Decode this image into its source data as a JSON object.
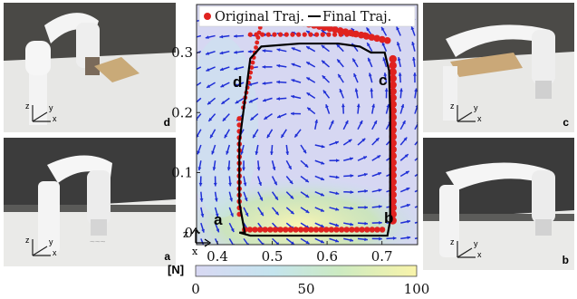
{
  "photos": [
    {
      "id": "d",
      "label": "d"
    },
    {
      "id": "a",
      "label": "a"
    },
    {
      "id": "c",
      "label": "c"
    },
    {
      "id": "b",
      "label": "b"
    }
  ],
  "axes_gizmo": {
    "x": "x",
    "y": "y",
    "z": "z"
  },
  "plot": {
    "legend": {
      "original": "Original Traj.",
      "final": "Final Traj."
    },
    "x_ticks": [
      "0.4",
      "0.5",
      "0.6",
      "0.7"
    ],
    "y_ticks": [
      "0",
      "0.1",
      "0.2",
      "0.3"
    ],
    "point_labels": [
      "a",
      "b",
      "c",
      "d"
    ],
    "gizmo": {
      "z": "z",
      "x": "x"
    }
  },
  "colorbar": {
    "unit_label": "[N]",
    "ticks": [
      "0",
      "50",
      "100"
    ],
    "min": 0,
    "max": 100
  },
  "colors": {
    "original": "#e0221f",
    "final": "#000000",
    "arrows": "#1f2fd6"
  }
}
